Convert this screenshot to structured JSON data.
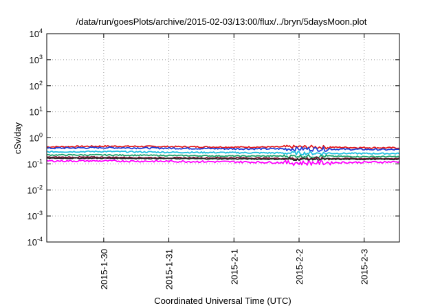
{
  "chart_data": {
    "type": "line",
    "title": "/data/run/goesPlots/archive/2015-02-03/13:00/flux/../bryn/5daysMoon.plot",
    "xlabel": "Coordinated Universal Time (UTC)",
    "ylabel": "cSv/day",
    "yscale": "log",
    "ylim": [
      0.0001,
      10000
    ],
    "y_ticks": [
      {
        "value": 0.0001,
        "base": "10",
        "exp": "-4"
      },
      {
        "value": 0.001,
        "base": "10",
        "exp": "-3"
      },
      {
        "value": 0.01,
        "base": "10",
        "exp": "-2"
      },
      {
        "value": 0.1,
        "base": "10",
        "exp": "-1"
      },
      {
        "value": 1,
        "base": "10",
        "exp": "0"
      },
      {
        "value": 10,
        "base": "10",
        "exp": "1"
      },
      {
        "value": 100,
        "base": "10",
        "exp": "2"
      },
      {
        "value": 1000,
        "base": "10",
        "exp": "3"
      },
      {
        "value": 10000,
        "base": "10",
        "exp": "4"
      }
    ],
    "xlim": [
      "2015-01-29T03:00",
      "2015-02-03T13:00"
    ],
    "x_ticks": [
      {
        "value": "2015-01-30T00:00",
        "label": "2015-1-30"
      },
      {
        "value": "2015-01-31T00:00",
        "label": "2015-1-31"
      },
      {
        "value": "2015-02-01T00:00",
        "label": "2015-2-1"
      },
      {
        "value": "2015-02-02T00:00",
        "label": "2015-2-2"
      },
      {
        "value": "2015-02-03T00:00",
        "label": "2015-2-3"
      }
    ],
    "grid": true,
    "series": [
      {
        "color": "#e31a1c",
        "values": [
          0.45,
          0.48,
          0.46,
          0.44,
          0.45,
          0.42,
          0.41
        ],
        "noise": 0.06
      },
      {
        "color": "#1f3fd6",
        "values": [
          0.4,
          0.42,
          0.4,
          0.38,
          0.38,
          0.36,
          0.35
        ],
        "noise": 0.07
      },
      {
        "color": "#20c0e0",
        "values": [
          0.29,
          0.3,
          0.28,
          0.27,
          0.26,
          0.25,
          0.25
        ],
        "noise": 0.06
      },
      {
        "color": "#1aa06a",
        "values": [
          0.22,
          0.22,
          0.21,
          0.2,
          0.2,
          0.19,
          0.19
        ],
        "noise": 0.05
      },
      {
        "color": "#7a1030",
        "values": [
          0.18,
          0.18,
          0.17,
          0.17,
          0.16,
          0.16,
          0.16
        ],
        "noise": 0.05
      },
      {
        "color": "#2a2a2a",
        "values": [
          0.165,
          0.165,
          0.16,
          0.155,
          0.15,
          0.15,
          0.15
        ],
        "noise": 0.04
      },
      {
        "color": "#ff00ff",
        "values": [
          0.13,
          0.13,
          0.125,
          0.12,
          0.11,
          0.115,
          0.12
        ],
        "noise": 0.08
      }
    ],
    "series_points_at": [
      "2015-01-29T03:00",
      "2015-01-30T00:00",
      "2015-01-31T00:00",
      "2015-02-01T00:00",
      "2015-02-02T00:00",
      "2015-02-03T00:00",
      "2015-02-03T13:00"
    ]
  }
}
